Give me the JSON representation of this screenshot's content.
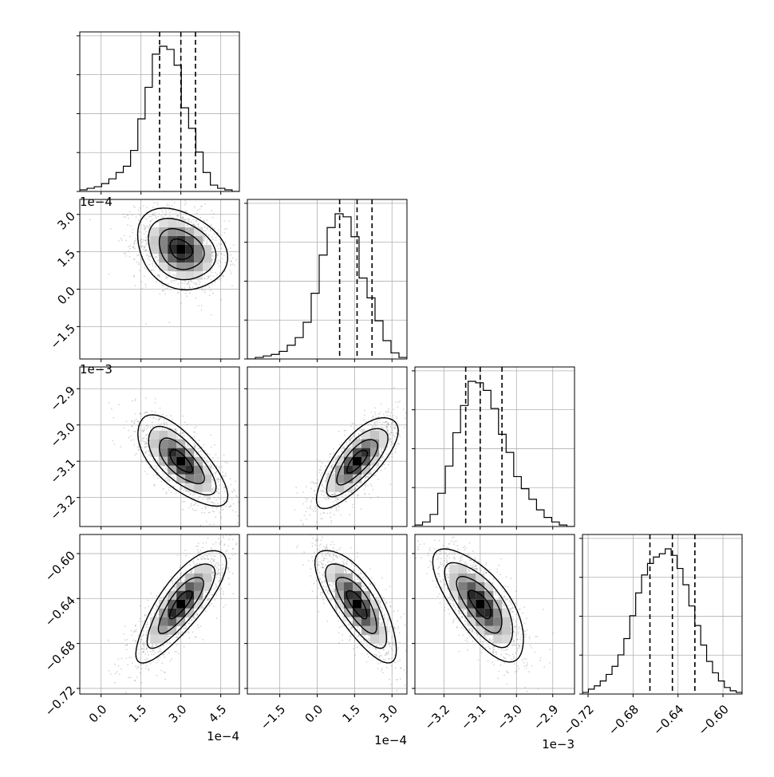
{
  "chart_data": {
    "type": "corner",
    "grid": true,
    "params": [
      {
        "ticks": [
          0.0,
          1.5,
          3.0,
          4.5
        ],
        "tick_labels": [
          "0.0",
          "1.5",
          "3.0",
          "4.5"
        ],
        "range": [
          -0.8,
          5.2
        ],
        "offset_label": "1e−4",
        "quantiles": [
          2.2,
          3.0,
          3.55
        ]
      },
      {
        "ticks": [
          -1.5,
          0.0,
          1.5,
          3.0
        ],
        "tick_labels": [
          "−1.5",
          "0.0",
          "1.5",
          "3.0"
        ],
        "range": [
          -2.8,
          3.6
        ],
        "offset_label": "1e−4",
        "quantiles": [
          0.9,
          1.6,
          2.2
        ]
      },
      {
        "ticks": [
          -3.2,
          -3.1,
          -3.0,
          -2.9
        ],
        "tick_labels": [
          "−3.2",
          "−3.1",
          "−3.0",
          "−2.9"
        ],
        "range": [
          -3.28,
          -2.84
        ],
        "offset_label": "1e−3",
        "quantiles": [
          -3.14,
          -3.1,
          -3.04
        ]
      },
      {
        "ticks": [
          -0.72,
          -0.68,
          -0.64,
          -0.6
        ],
        "tick_labels": [
          "−0.72",
          "−0.68",
          "−0.64",
          "−0.60"
        ],
        "range": [
          -0.725,
          -0.583
        ],
        "offset_label": "",
        "quantiles": [
          -0.665,
          -0.645,
          -0.625
        ]
      }
    ],
    "histograms": [
      {
        "values": [
          1,
          2,
          3,
          5,
          8,
          12,
          16,
          26,
          46,
          66,
          87,
          92,
          90,
          80,
          53,
          40,
          25,
          12,
          4,
          2,
          1,
          0
        ]
      },
      {
        "values": [
          0,
          1,
          2,
          3,
          5,
          9,
          14,
          24,
          43,
          68,
          86,
          95,
          93,
          80,
          53,
          40,
          25,
          12,
          4,
          1
        ]
      },
      {
        "values": [
          1,
          3,
          8,
          22,
          40,
          62,
          80,
          96,
          95,
          90,
          78,
          61,
          49,
          33,
          25,
          18,
          11,
          6,
          3,
          1,
          0
        ]
      },
      {
        "values": [
          1,
          3,
          5,
          8,
          12,
          17,
          24,
          34,
          48,
          62,
          73,
          80,
          84,
          86,
          89,
          85,
          77,
          67,
          54,
          42,
          30,
          20,
          13,
          8,
          4,
          2,
          1
        ]
      }
    ],
    "correlations": {
      "1-0": -0.25,
      "2-0": -0.7,
      "2-1": 0.75,
      "3-0": 0.8,
      "3-1": -0.75,
      "3-2": -0.7
    }
  }
}
